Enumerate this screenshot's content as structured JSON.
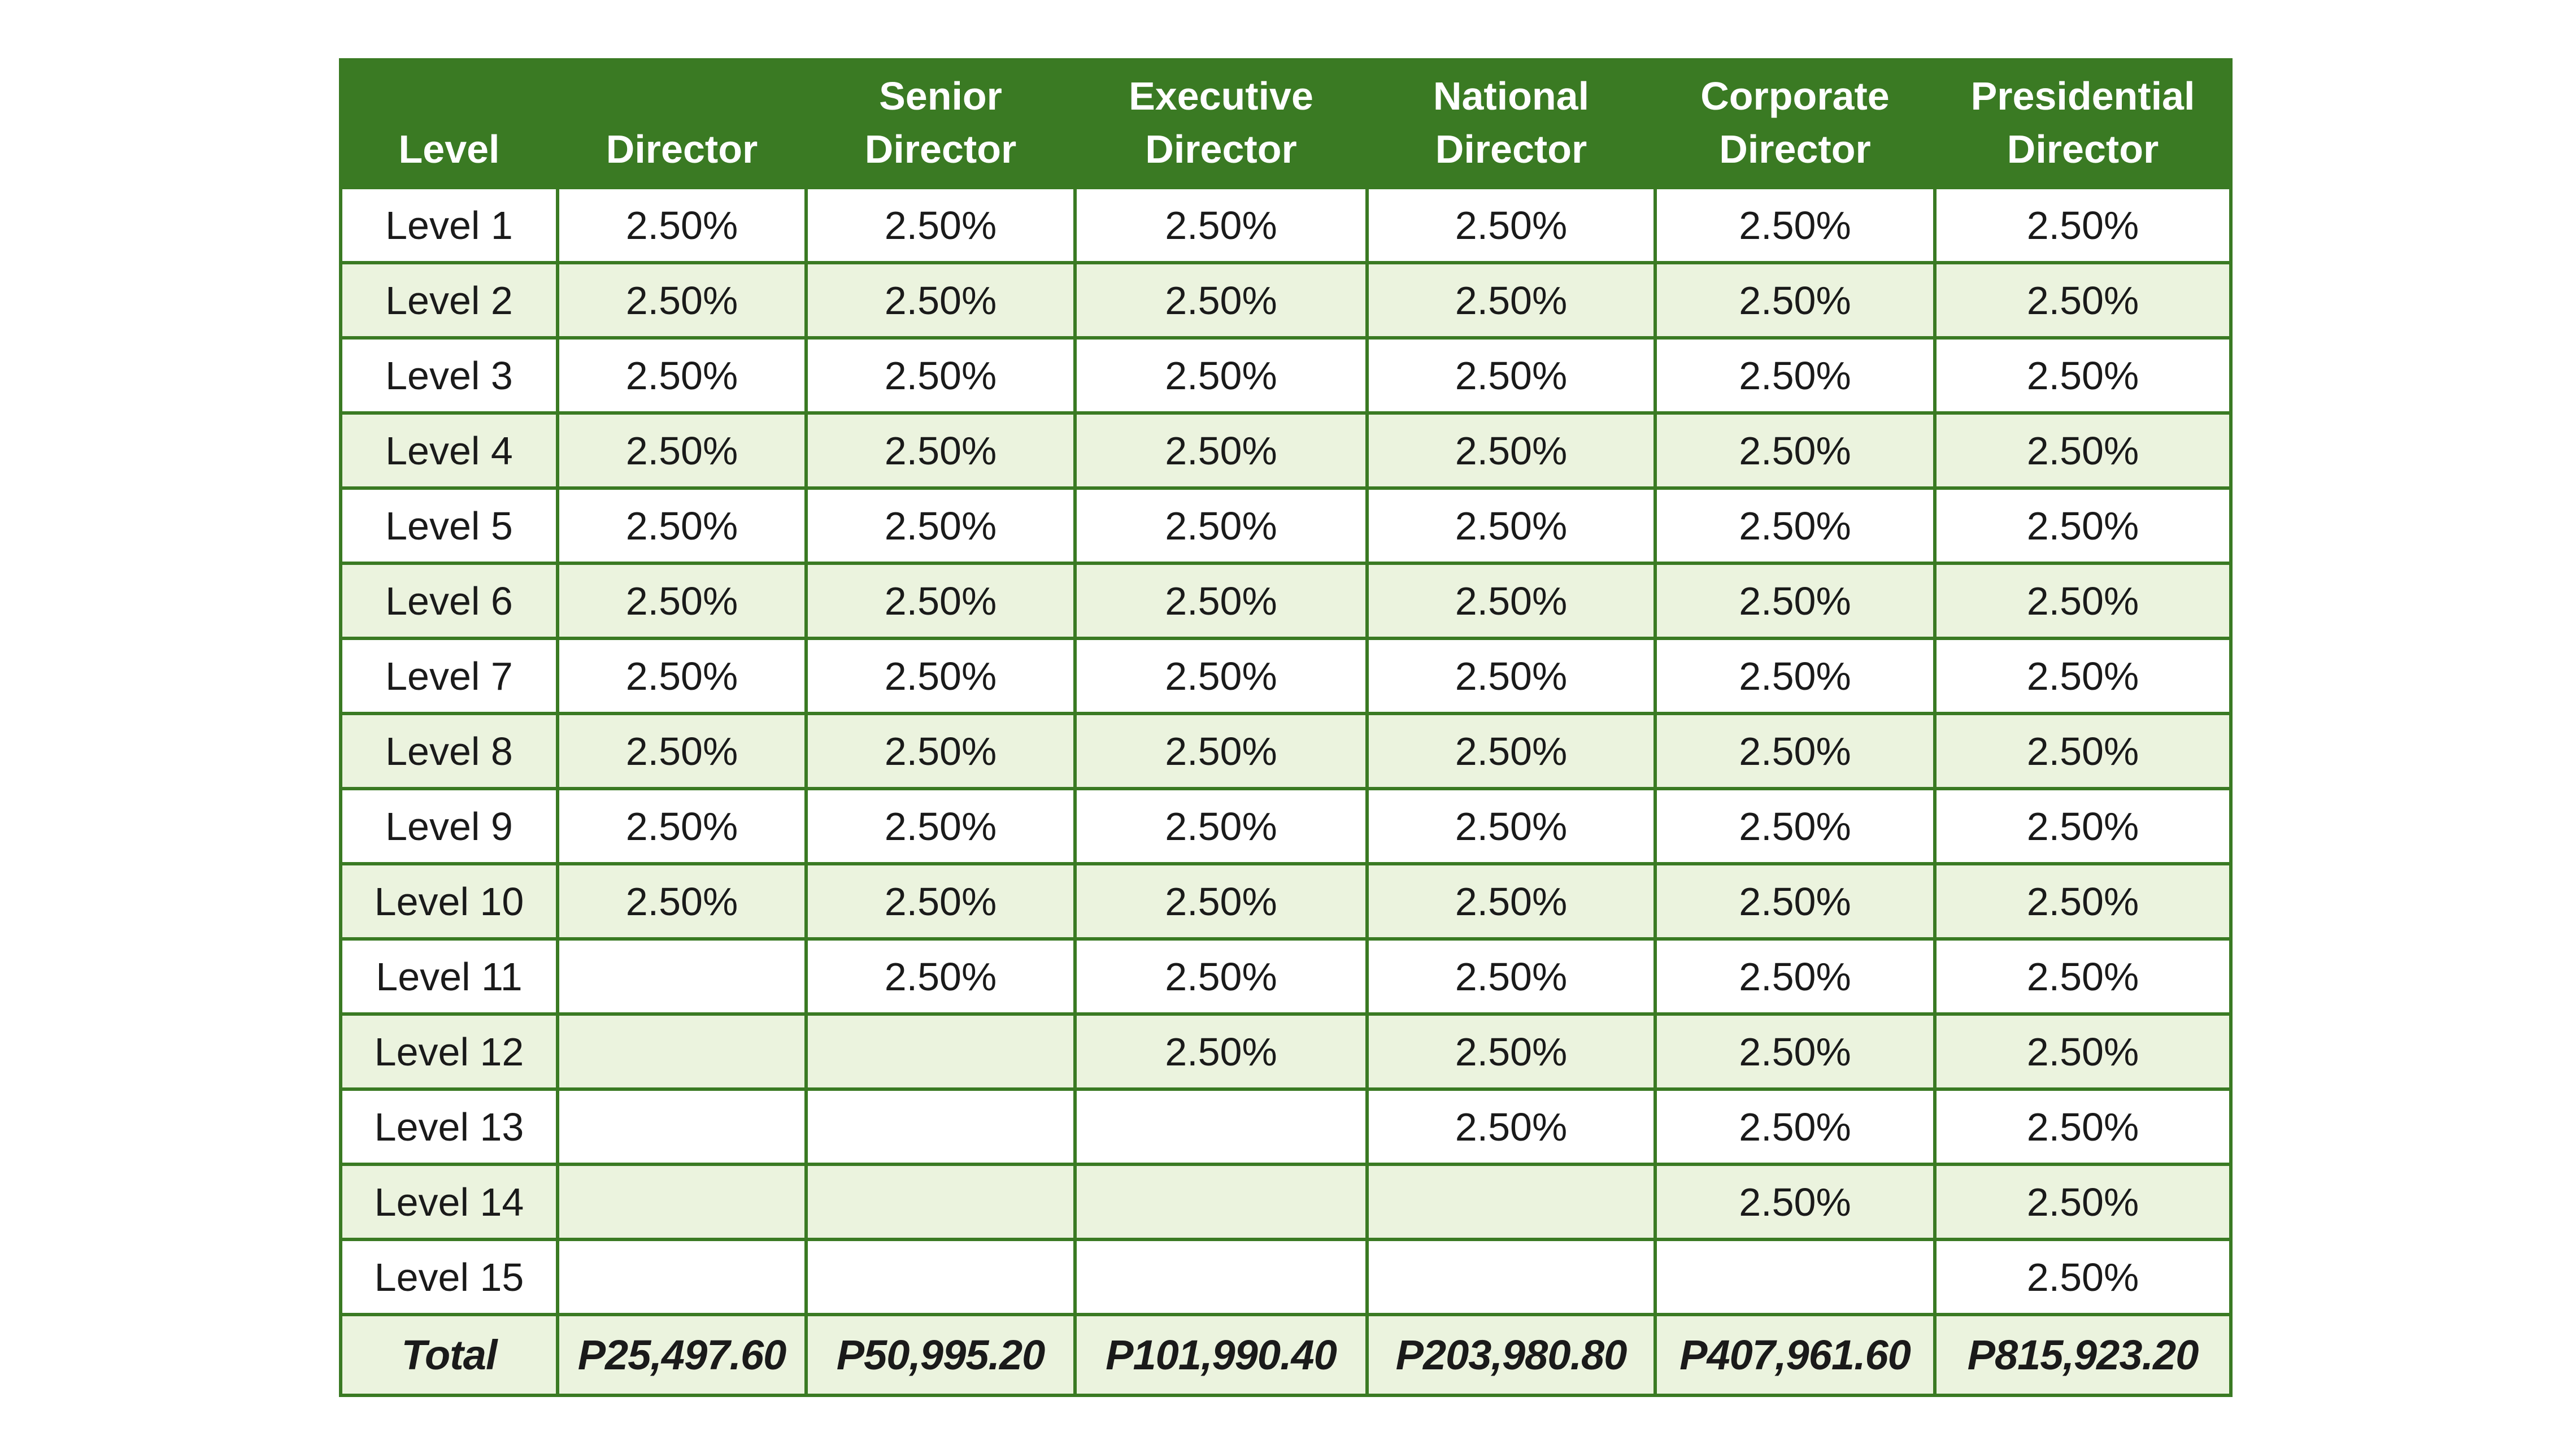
{
  "table": {
    "headers": [
      {
        "line1": "",
        "line2": "Level"
      },
      {
        "line1": "",
        "line2": "Director"
      },
      {
        "line1": "Senior",
        "line2": "Director"
      },
      {
        "line1": "Executive",
        "line2": "Director"
      },
      {
        "line1": "National",
        "line2": "Director"
      },
      {
        "line1": "Corporate",
        "line2": "Director"
      },
      {
        "line1": "Presidential",
        "line2": "Director"
      }
    ],
    "rows": [
      [
        "Level 1",
        "2.50%",
        "2.50%",
        "2.50%",
        "2.50%",
        "2.50%",
        "2.50%"
      ],
      [
        "Level 2",
        "2.50%",
        "2.50%",
        "2.50%",
        "2.50%",
        "2.50%",
        "2.50%"
      ],
      [
        "Level 3",
        "2.50%",
        "2.50%",
        "2.50%",
        "2.50%",
        "2.50%",
        "2.50%"
      ],
      [
        "Level 4",
        "2.50%",
        "2.50%",
        "2.50%",
        "2.50%",
        "2.50%",
        "2.50%"
      ],
      [
        "Level 5",
        "2.50%",
        "2.50%",
        "2.50%",
        "2.50%",
        "2.50%",
        "2.50%"
      ],
      [
        "Level 6",
        "2.50%",
        "2.50%",
        "2.50%",
        "2.50%",
        "2.50%",
        "2.50%"
      ],
      [
        "Level 7",
        "2.50%",
        "2.50%",
        "2.50%",
        "2.50%",
        "2.50%",
        "2.50%"
      ],
      [
        "Level 8",
        "2.50%",
        "2.50%",
        "2.50%",
        "2.50%",
        "2.50%",
        "2.50%"
      ],
      [
        "Level 9",
        "2.50%",
        "2.50%",
        "2.50%",
        "2.50%",
        "2.50%",
        "2.50%"
      ],
      [
        "Level 10",
        "2.50%",
        "2.50%",
        "2.50%",
        "2.50%",
        "2.50%",
        "2.50%"
      ],
      [
        "Level 11",
        "",
        "2.50%",
        "2.50%",
        "2.50%",
        "2.50%",
        "2.50%"
      ],
      [
        "Level 12",
        "",
        "",
        "2.50%",
        "2.50%",
        "2.50%",
        "2.50%"
      ],
      [
        "Level 13",
        "",
        "",
        "",
        "2.50%",
        "2.50%",
        "2.50%"
      ],
      [
        "Level 14",
        "",
        "",
        "",
        "",
        "2.50%",
        "2.50%"
      ],
      [
        "Level 15",
        "",
        "",
        "",
        "",
        "",
        "2.50%"
      ]
    ],
    "total": [
      "Total",
      "P25,497.60",
      "P50,995.20",
      "P101,990.40",
      "P203,980.80",
      "P407,961.60",
      "P815,923.20"
    ]
  },
  "colors": {
    "header_bg": "#3a7a23",
    "border": "#3a7a23",
    "alt_row_bg": "#ebf3de",
    "header_text": "#ffffff",
    "body_text": "#1a1a1a"
  }
}
